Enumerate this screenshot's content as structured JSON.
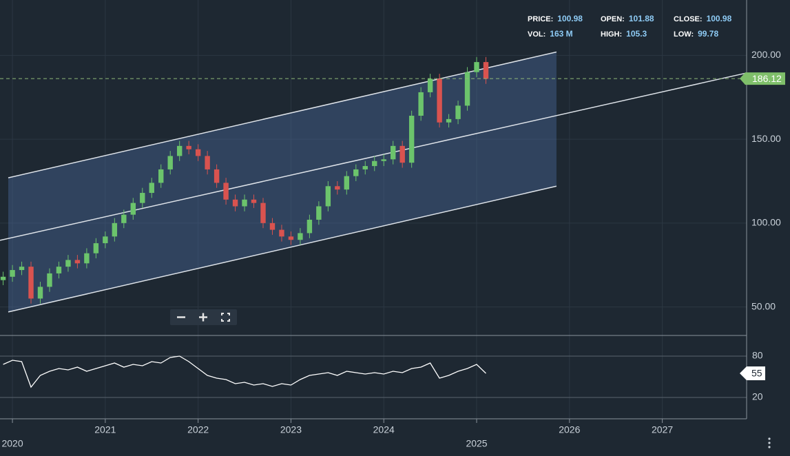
{
  "chart_data": [
    {
      "type": "candlestick",
      "x": [
        2019.9,
        2020.0,
        2020.1,
        2020.2,
        2020.3,
        2020.4,
        2020.5,
        2020.6,
        2020.7,
        2020.8,
        2020.9,
        2021.0,
        2021.1,
        2021.2,
        2021.3,
        2021.4,
        2021.5,
        2021.6,
        2021.7,
        2021.8,
        2021.9,
        2022.0,
        2022.1,
        2022.2,
        2022.3,
        2022.4,
        2022.5,
        2022.6,
        2022.7,
        2022.8,
        2022.9,
        2023.0,
        2023.1,
        2023.2,
        2023.3,
        2023.4,
        2023.5,
        2023.6,
        2023.7,
        2023.8,
        2023.9,
        2024.0,
        2024.1,
        2024.2,
        2024.3,
        2024.4,
        2024.5,
        2024.6,
        2024.7,
        2024.8,
        2024.9,
        2025.0,
        2025.1
      ],
      "open": [
        66,
        68,
        72,
        74,
        55,
        62,
        70,
        74,
        78,
        76,
        82,
        88,
        92,
        100,
        105,
        112,
        118,
        124,
        132,
        140,
        146,
        144,
        140,
        132,
        124,
        114,
        110,
        114,
        112,
        100,
        96,
        92,
        90,
        94,
        102,
        110,
        122,
        120,
        128,
        132,
        134,
        137,
        138,
        146,
        136,
        164,
        178,
        186,
        160,
        162,
        170,
        190,
        196
      ],
      "high": [
        71,
        75,
        77,
        77,
        65,
        73,
        77,
        81,
        81,
        85,
        91,
        95,
        103,
        108,
        115,
        121,
        127,
        135,
        143,
        149,
        149,
        147,
        143,
        135,
        127,
        117,
        117,
        117,
        115,
        103,
        99,
        95,
        97,
        105,
        113,
        125,
        125,
        131,
        135,
        137,
        140,
        141,
        149,
        149,
        167,
        181,
        189,
        189,
        165,
        173,
        193,
        199,
        199
      ],
      "low": [
        63,
        65,
        69,
        52,
        52,
        59,
        67,
        71,
        73,
        73,
        79,
        85,
        89,
        97,
        102,
        109,
        115,
        121,
        129,
        137,
        141,
        137,
        129,
        121,
        111,
        107,
        107,
        109,
        97,
        93,
        89,
        87,
        87,
        91,
        99,
        107,
        117,
        117,
        125,
        129,
        131,
        134,
        135,
        133,
        133,
        161,
        175,
        157,
        157,
        159,
        167,
        187,
        183
      ],
      "close": [
        68,
        72,
        74,
        55,
        62,
        70,
        74,
        78,
        76,
        82,
        88,
        92,
        100,
        105,
        112,
        118,
        124,
        132,
        140,
        146,
        144,
        140,
        132,
        124,
        114,
        110,
        114,
        112,
        100,
        96,
        92,
        90,
        94,
        102,
        110,
        122,
        120,
        128,
        132,
        134,
        137,
        138,
        146,
        136,
        164,
        178,
        186,
        160,
        162,
        170,
        190,
        196,
        186
      ],
      "up_color": "#6cc46c",
      "down_color": "#d9534f",
      "xlim": [
        2019.866,
        2027.908
      ],
      "xticks": [
        2020,
        2021,
        2022,
        2023,
        2024,
        2025,
        2026,
        2027
      ],
      "ylim": [
        33,
        233
      ],
      "yticks": [
        {
          "value": 50,
          "label": "50.00"
        },
        {
          "value": 100,
          "label": "100.00"
        },
        {
          "value": 150,
          "label": "150.00"
        },
        {
          "value": 200,
          "label": "200.00"
        }
      ],
      "grid": true,
      "last_price": 186.12,
      "channel": {
        "x": [
          2019.955,
          2025.86
        ],
        "upper": [
          127,
          202
        ],
        "lower": [
          47,
          122
        ],
        "mid_x": [
          2019.866,
          2027.908
        ],
        "mid": [
          89.7,
          189.5
        ],
        "color": "#dfe4ea"
      }
    },
    {
      "type": "line",
      "x": [
        2019.9,
        2020.0,
        2020.1,
        2020.2,
        2020.3,
        2020.4,
        2020.5,
        2020.6,
        2020.7,
        2020.8,
        2020.9,
        2021.0,
        2021.1,
        2021.2,
        2021.3,
        2021.4,
        2021.5,
        2021.6,
        2021.7,
        2021.8,
        2021.9,
        2022.0,
        2022.1,
        2022.2,
        2022.3,
        2022.4,
        2022.5,
        2022.6,
        2022.7,
        2022.8,
        2022.9,
        2023.0,
        2023.1,
        2023.2,
        2023.3,
        2023.4,
        2023.5,
        2023.6,
        2023.7,
        2023.8,
        2023.9,
        2024.0,
        2024.1,
        2024.2,
        2024.3,
        2024.4,
        2024.5,
        2024.6,
        2024.7,
        2024.8,
        2024.9,
        2025.0,
        2025.1
      ],
      "values": [
        68,
        74,
        72,
        35,
        52,
        58,
        62,
        60,
        64,
        58,
        62,
        66,
        70,
        64,
        68,
        66,
        72,
        70,
        78,
        80,
        72,
        62,
        52,
        48,
        46,
        40,
        42,
        38,
        40,
        36,
        40,
        38,
        46,
        52,
        54,
        56,
        52,
        58,
        56,
        54,
        56,
        54,
        58,
        56,
        62,
        64,
        70,
        48,
        52,
        58,
        62,
        68,
        55
      ],
      "color": "#ffffff",
      "xlim": [
        2019.866,
        2027.908
      ],
      "ylim": [
        -11,
        109
      ],
      "yticks": [
        20,
        80
      ],
      "last_value": 55
    }
  ],
  "info": [
    {
      "label": "PRICE:",
      "value": 100.98
    },
    {
      "label": "OPEN:",
      "value": 101.88
    },
    {
      "label": "CLOSE:",
      "value": 100.98
    },
    {
      "label": "VOL:",
      "value": "163 M"
    },
    {
      "label": "HIGH:",
      "value": 105.3
    },
    {
      "label": "LOW:",
      "value": 99.78
    }
  ]
}
